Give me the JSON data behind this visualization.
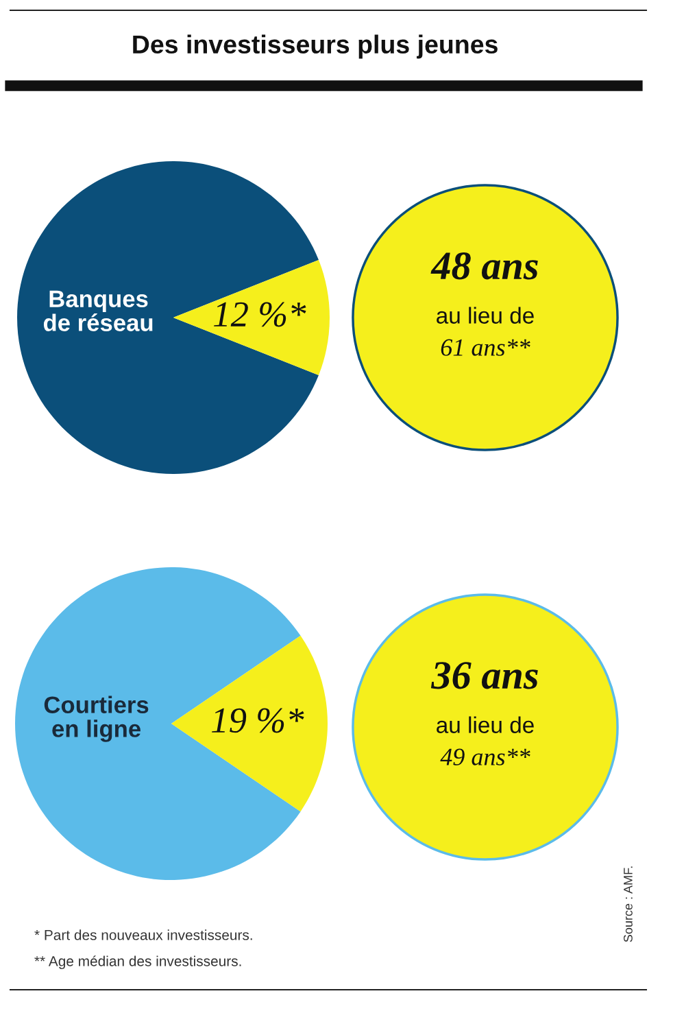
{
  "chart_data": [
    {
      "type": "pie",
      "title": "Des investisseurs plus jeunes",
      "categories": [
        "Banques\nde réseau",
        null
      ],
      "values": [
        88,
        12
      ],
      "colors": [
        "#0b4f7a",
        "#f5ef1c"
      ],
      "value_labels": [
        null,
        "12 %*"
      ]
    },
    {
      "type": "other",
      "colors": [
        "#f5ef1c",
        "#0b4f7a"
      ],
      "annotations": [
        "48 ans",
        "au lieu de",
        "61 ans**"
      ]
    },
    {
      "type": "pie",
      "categories": [
        "Courtiers\nen ligne",
        null
      ],
      "values": [
        81,
        19
      ],
      "colors": [
        "#5bbbe9",
        "#f5ef1c"
      ],
      "value_labels": [
        null,
        "19 %*"
      ]
    },
    {
      "type": "other",
      "colors": [
        "#f5ef1c",
        "#5bbbe9"
      ],
      "annotations": [
        "36 ans",
        "au lieu de",
        "49 ans**",
        "* Part des nouveaux investisseurs.",
        "** Age médian des investisseurs.",
        "Source : AMF."
      ]
    }
  ]
}
